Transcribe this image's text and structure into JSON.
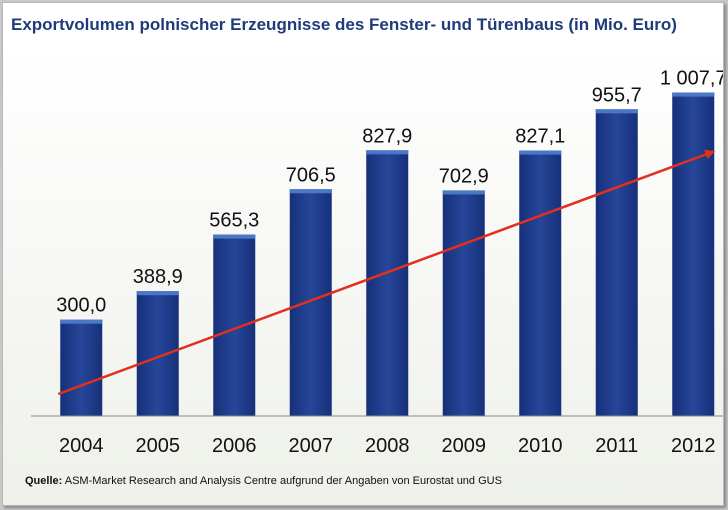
{
  "title": "Exportvolumen polnischer Erzeugnisse des Fenster- und Türenbaus (in Mio. Euro)",
  "source_label": "Quelle:",
  "source_text": "ASM-Market Research and Analysis Centre aufgrund der Angaben von Eurostat und GUS",
  "colors": {
    "bar": "#1f3a85",
    "bar_top": "#4a78c8",
    "trend": "#e0301e",
    "title": "#1f3b7a"
  },
  "chart_data": {
    "type": "bar",
    "title": "Exportvolumen polnischer Erzeugnisse des Fenster- und Türenbaus (in Mio. Euro)",
    "categories": [
      "2004",
      "2005",
      "2006",
      "2007",
      "2008",
      "2009",
      "2010",
      "2011",
      "2012"
    ],
    "values": [
      300.0,
      388.9,
      565.3,
      706.5,
      827.9,
      702.9,
      827.1,
      955.7,
      1007.7
    ],
    "value_labels": [
      "300,0",
      "388,9",
      "565,3",
      "706,5",
      "827,9",
      "702,9",
      "827,1",
      "955,7",
      "1 007,7"
    ],
    "ylim": [
      0,
      1100
    ],
    "grid": false,
    "legend": "none",
    "annotations": [
      "trend arrow (red) rising from 2004 to 2012"
    ]
  }
}
